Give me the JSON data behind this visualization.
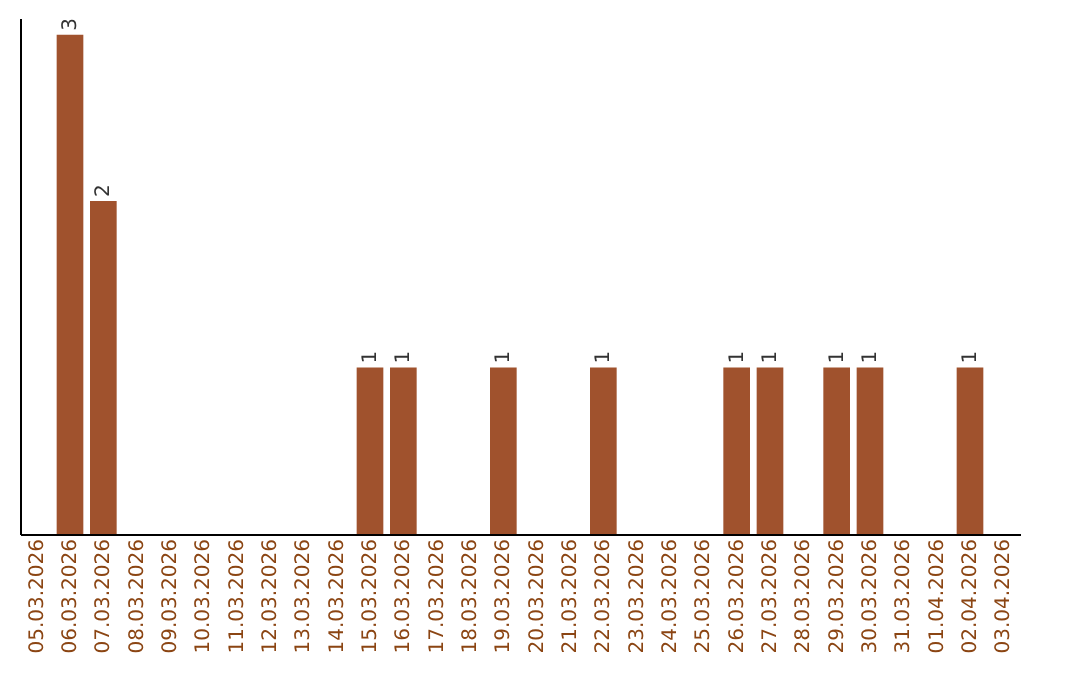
{
  "chart_data": {
    "type": "bar",
    "categories": [
      "05.03.2026",
      "06.03.2026",
      "07.03.2026",
      "08.03.2026",
      "09.03.2026",
      "10.03.2026",
      "11.03.2026",
      "12.03.2026",
      "13.03.2026",
      "14.03.2026",
      "15.03.2026",
      "16.03.2026",
      "17.03.2026",
      "18.03.2026",
      "19.03.2026",
      "20.03.2026",
      "21.03.2026",
      "22.03.2026",
      "23.03.2026",
      "24.03.2026",
      "25.03.2026",
      "26.03.2026",
      "27.03.2026",
      "28.03.2026",
      "29.03.2026",
      "30.03.2026",
      "31.03.2026",
      "01.04.2026",
      "02.04.2026",
      "03.04.2026"
    ],
    "values": [
      null,
      3,
      2,
      null,
      null,
      null,
      null,
      null,
      null,
      null,
      1,
      1,
      null,
      null,
      1,
      null,
      null,
      1,
      null,
      null,
      null,
      1,
      1,
      null,
      1,
      1,
      null,
      null,
      1,
      null
    ],
    "color": "#a0522d",
    "ylim": [
      0,
      3.1
    ],
    "data_labels": true,
    "tick_labels": "x",
    "grid": false
  }
}
